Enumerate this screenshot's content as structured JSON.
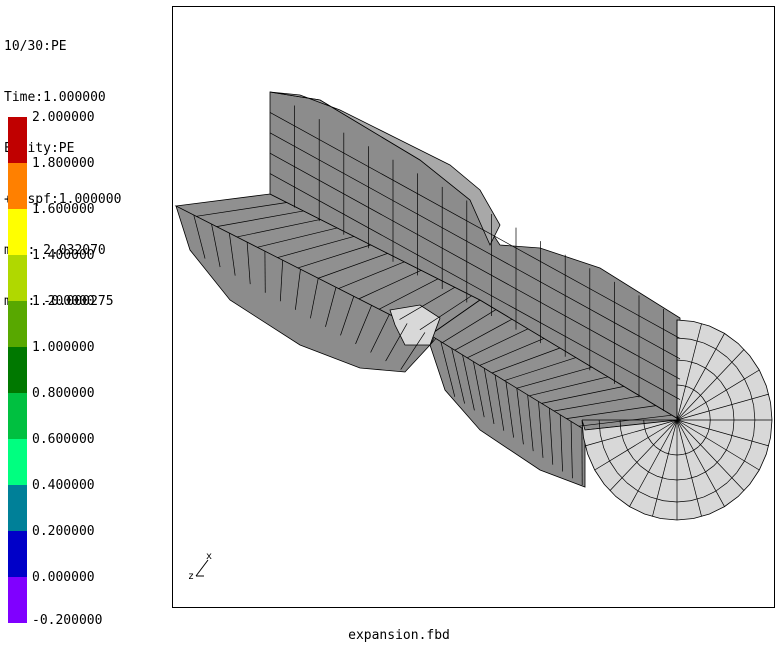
{
  "info": {
    "line1": "10/30:PE",
    "line2": "Time:1.000000",
    "line3": "Entity:PE",
    "line4": "+Dispf:1.000000",
    "line5": "max: 2.032070",
    "line6": "min: -0.000275"
  },
  "legend": {
    "colors": [
      "#c00000",
      "#ff8000",
      "#ffff00",
      "#b0d800",
      "#58a800",
      "#007800",
      "#00c040",
      "#00ff80",
      "#008098",
      "#0000c8",
      "#8000ff"
    ],
    "labels": [
      "2.000000",
      "1.800000",
      "1.600000",
      "1.400000",
      "1.200000",
      "1.000000",
      "0.800000",
      "0.600000",
      "0.400000",
      "0.200000",
      "0.000000",
      "-0.200000"
    ]
  },
  "axes": {
    "label_x": "x",
    "label_z": "z"
  },
  "filename": "expansion.fbd",
  "mesh_colors": {
    "dark": "#8c8c8c",
    "mid": "#a8a8a8",
    "light": "#d8d8d8",
    "line": "#000000"
  }
}
